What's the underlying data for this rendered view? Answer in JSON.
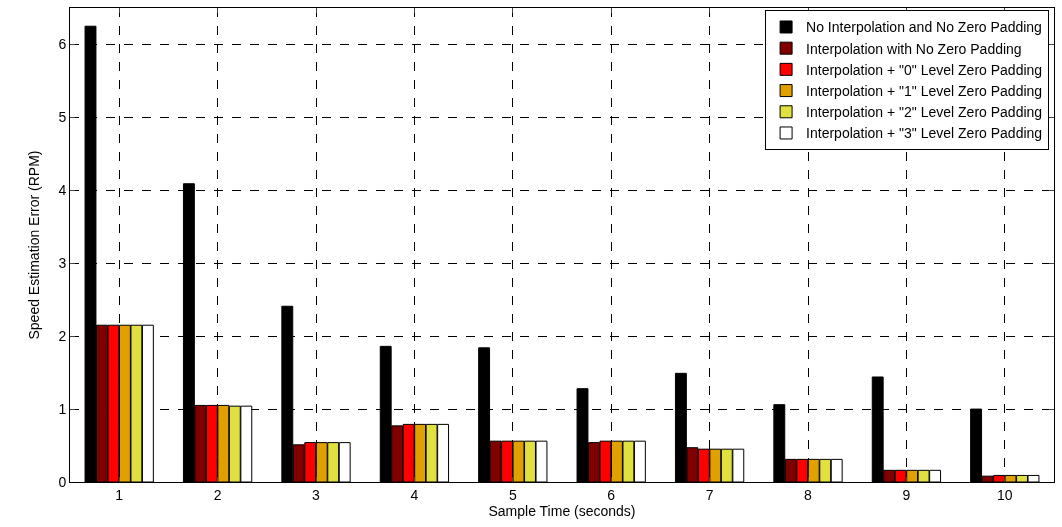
{
  "chart_data": {
    "type": "bar",
    "xlabel": "Sample Time (seconds)",
    "ylabel": "Speed Estimation Error (RPM)",
    "categories": [
      "1",
      "2",
      "3",
      "4",
      "5",
      "6",
      "7",
      "8",
      "9",
      "10"
    ],
    "series": [
      {
        "name": "No Interpolation and No Zero Padding",
        "color": "#000000",
        "values": [
          6.25,
          4.09,
          2.41,
          1.86,
          1.84,
          1.28,
          1.49,
          1.06,
          1.44,
          1.0
        ]
      },
      {
        "name": "Interpolation with No Zero Padding",
        "color": "#800000",
        "values": [
          2.15,
          1.05,
          0.51,
          0.77,
          0.56,
          0.54,
          0.47,
          0.31,
          0.16,
          0.08
        ]
      },
      {
        "name": "Interpolation + \"0\" Level Zero Padding",
        "color": "#ff0000",
        "values": [
          2.15,
          1.05,
          0.54,
          0.79,
          0.56,
          0.56,
          0.45,
          0.31,
          0.16,
          0.09
        ]
      },
      {
        "name": "Interpolation + \"1\" Level Zero Padding",
        "color": "#e0a000",
        "values": [
          2.15,
          1.05,
          0.54,
          0.79,
          0.56,
          0.56,
          0.45,
          0.31,
          0.16,
          0.09
        ]
      },
      {
        "name": "Interpolation + \"2\" Level Zero Padding",
        "color": "#e0e040",
        "values": [
          2.15,
          1.04,
          0.54,
          0.79,
          0.56,
          0.56,
          0.45,
          0.31,
          0.16,
          0.09
        ]
      },
      {
        "name": "Interpolation + \"3\" Level Zero Padding",
        "color": "#ffffff",
        "values": [
          2.15,
          1.04,
          0.54,
          0.79,
          0.56,
          0.56,
          0.45,
          0.31,
          0.16,
          0.09
        ]
      }
    ],
    "ylim": [
      0,
      6.5
    ],
    "yticks": [
      0,
      1,
      2,
      3,
      4,
      5,
      6
    ],
    "grid": true,
    "legend": "top right"
  }
}
